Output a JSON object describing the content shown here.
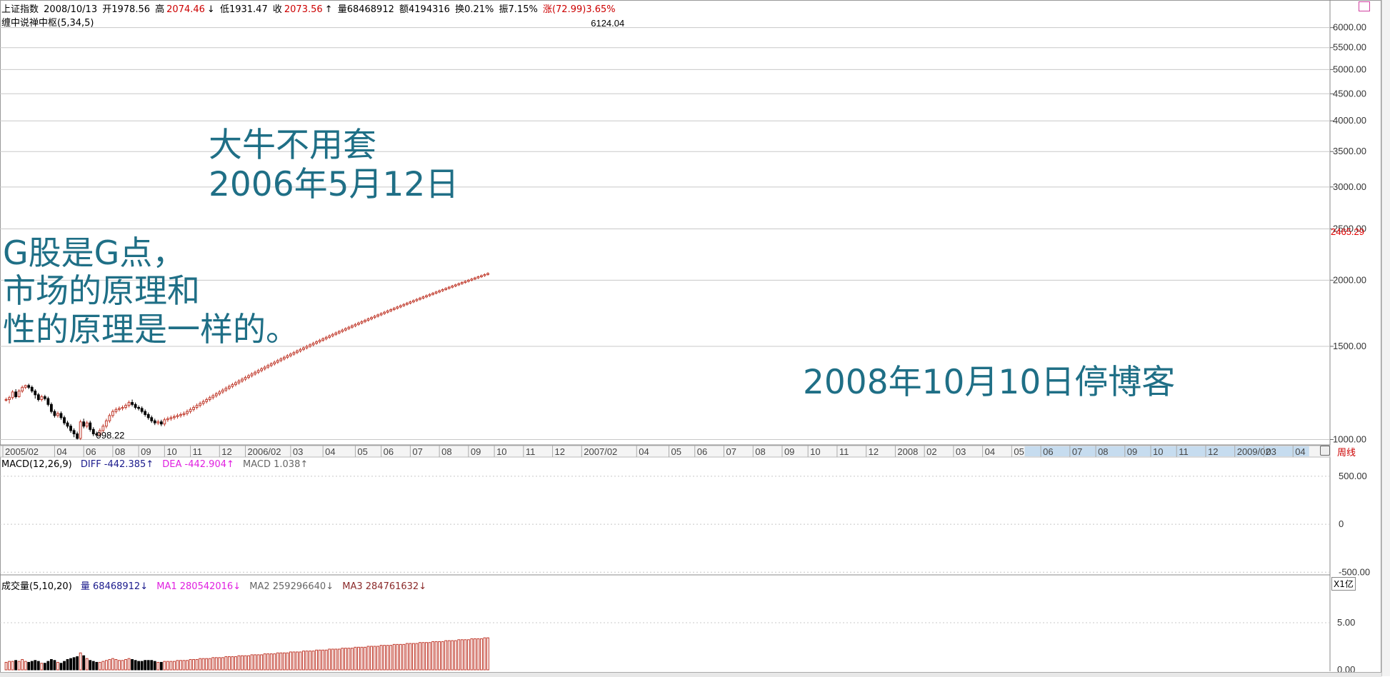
{
  "header": {
    "index_name": "上证指数",
    "date": "2008/10/13",
    "open": "开1978.56",
    "high_label": "高",
    "high": "2074.46",
    "low": "低1931.47",
    "close_label": "收",
    "close": "2073.56",
    "volume": "量68468912",
    "amount": "额4194316",
    "turnover": "换0.21%",
    "amplitude": "振7.15%",
    "change": "涨(72.99)3.65%",
    "indicator_line": "缠中说禅中枢(5,34,5)"
  },
  "annotations": {
    "title_line1": "大牛不用套",
    "title_line2": "2006年5月12日",
    "left_line1": "G股是G点，",
    "left_line2": "市场的原理和",
    "left_line3": "性的原理是一样的。",
    "bottom_right": "2008年10月10日停博客"
  },
  "colors": {
    "up": "#c0392b",
    "down": "#000000",
    "trend_blue": "#0a14c8",
    "zs_magenta": "#e020e0",
    "zs_cyan": "#20d8e8",
    "annot": "#1f6f86",
    "grid": "#c8c8c8",
    "macd_diff": "#1a1a8c",
    "macd_dea": "#e020e0",
    "ma3": "#8b2a2a"
  },
  "chart_data": {
    "type": "candlestick",
    "period": "周线",
    "price_axis": {
      "scale": "log",
      "range": [
        980,
        6600
      ],
      "ticks": [
        1000,
        1500,
        2000,
        2500,
        3000,
        3500,
        4000,
        4500,
        5000,
        5500,
        6000
      ],
      "tick_labels": [
        "1000.00",
        "1500.00",
        "2000.00",
        "2500.00",
        "3000.00",
        "3500.00",
        "4000.00",
        "4500.00",
        "5000.00",
        "5500.00",
        "6000.00"
      ],
      "marker_value": 2465.29,
      "marker_label": "2465.29"
    },
    "extremes": {
      "high_label": "6124.04",
      "high_week": 177,
      "low_label": "998.22",
      "low_week": 24
    },
    "time_axis": {
      "labels": [
        {
          "w": 0,
          "t": "2005/02"
        },
        {
          "w": 16,
          "t": "04"
        },
        {
          "w": 25,
          "t": "06"
        },
        {
          "w": 34,
          "t": "08"
        },
        {
          "w": 42,
          "t": "09"
        },
        {
          "w": 50,
          "t": "10"
        },
        {
          "w": 58,
          "t": "11"
        },
        {
          "w": 67,
          "t": "12"
        },
        {
          "w": 75,
          "t": "2006/02"
        },
        {
          "w": 89,
          "t": "03"
        },
        {
          "w": 99,
          "t": "04"
        },
        {
          "w": 109,
          "t": "05"
        },
        {
          "w": 117,
          "t": "06"
        },
        {
          "w": 126,
          "t": "07"
        },
        {
          "w": 135,
          "t": "08"
        },
        {
          "w": 144,
          "t": "09"
        },
        {
          "w": 152,
          "t": "10"
        },
        {
          "w": 161,
          "t": "11"
        },
        {
          "w": 170,
          "t": "12"
        },
        {
          "w": 179,
          "t": "2007/02"
        },
        {
          "w": 196,
          "t": "04"
        },
        {
          "w": 206,
          "t": "05"
        },
        {
          "w": 214,
          "t": "06"
        },
        {
          "w": 223,
          "t": "07"
        },
        {
          "w": 232,
          "t": "08"
        },
        {
          "w": 241,
          "t": "09"
        },
        {
          "w": 249,
          "t": "10"
        },
        {
          "w": 258,
          "t": "11"
        },
        {
          "w": 267,
          "t": "12"
        },
        {
          "w": 276,
          "t": "2008"
        },
        {
          "w": 285,
          "t": "02"
        },
        {
          "w": 294,
          "t": "03"
        },
        {
          "w": 303,
          "t": "04"
        },
        {
          "w": 312,
          "t": "05"
        },
        {
          "w": 321,
          "t": "06"
        },
        {
          "w": 330,
          "t": "07"
        },
        {
          "w": 338,
          "t": "08"
        },
        {
          "w": 347,
          "t": "09"
        },
        {
          "w": 355,
          "t": "10"
        },
        {
          "w": 363,
          "t": "11"
        },
        {
          "w": 372,
          "t": "12"
        },
        {
          "w": 381,
          "t": "2009/02"
        },
        {
          "w": 390,
          "t": "03"
        },
        {
          "w": 399,
          "t": "04"
        }
      ],
      "future_start_week": 316,
      "future_end_week": 404,
      "period_label": "周线"
    },
    "candles": [
      [
        1,
        1190,
        1190,
        1200,
        1180,
        8
      ],
      [
        2,
        1190,
        1200,
        1210,
        1170,
        9
      ],
      [
        3,
        1200,
        1230,
        1240,
        1190,
        9
      ],
      [
        4,
        1230,
        1205,
        1245,
        1195,
        10
      ],
      [
        5,
        1205,
        1235,
        1245,
        1200,
        9
      ],
      [
        6,
        1235,
        1255,
        1265,
        1225,
        11
      ],
      [
        7,
        1255,
        1265,
        1270,
        1245,
        9
      ],
      [
        8,
        1265,
        1255,
        1275,
        1245,
        8
      ],
      [
        9,
        1255,
        1235,
        1265,
        1225,
        9
      ],
      [
        10,
        1235,
        1215,
        1245,
        1195,
        10
      ],
      [
        11,
        1215,
        1190,
        1225,
        1180,
        9
      ],
      [
        12,
        1190,
        1205,
        1215,
        1180,
        7
      ],
      [
        13,
        1205,
        1195,
        1215,
        1185,
        7
      ],
      [
        14,
        1195,
        1165,
        1205,
        1155,
        9
      ],
      [
        15,
        1165,
        1130,
        1175,
        1120,
        11
      ],
      [
        16,
        1130,
        1110,
        1140,
        1100,
        10
      ],
      [
        17,
        1110,
        1120,
        1130,
        1100,
        8
      ],
      [
        18,
        1120,
        1100,
        1130,
        1090,
        7
      ],
      [
        19,
        1100,
        1075,
        1110,
        1065,
        9
      ],
      [
        20,
        1075,
        1060,
        1085,
        1050,
        11
      ],
      [
        21,
        1060,
        1040,
        1070,
        1030,
        12
      ],
      [
        22,
        1040,
        1025,
        1050,
        1010,
        13
      ],
      [
        23,
        1025,
        1005,
        1035,
        1000,
        14
      ],
      [
        24,
        1005,
        1080,
        1090,
        998,
        18
      ],
      [
        25,
        1080,
        1060,
        1095,
        1050,
        15
      ],
      [
        26,
        1060,
        1075,
        1085,
        1050,
        12
      ],
      [
        27,
        1075,
        1045,
        1085,
        1035,
        10
      ],
      [
        28,
        1045,
        1025,
        1055,
        1015,
        9
      ],
      [
        29,
        1025,
        1020,
        1035,
        1010,
        8
      ],
      [
        30,
        1020,
        1040,
        1050,
        1015,
        8
      ],
      [
        31,
        1040,
        1060,
        1070,
        1030,
        9
      ],
      [
        32,
        1060,
        1085,
        1095,
        1050,
        10
      ],
      [
        33,
        1085,
        1110,
        1120,
        1075,
        11
      ],
      [
        34,
        1110,
        1130,
        1140,
        1100,
        12
      ],
      [
        35,
        1130,
        1140,
        1150,
        1120,
        11
      ],
      [
        36,
        1140,
        1145,
        1155,
        1130,
        10
      ],
      [
        37,
        1145,
        1150,
        1160,
        1135,
        10
      ],
      [
        38,
        1150,
        1160,
        1170,
        1140,
        11
      ],
      [
        39,
        1160,
        1175,
        1185,
        1150,
        12
      ],
      [
        40,
        1175,
        1165,
        1190,
        1155,
        11
      ],
      [
        41,
        1165,
        1150,
        1175,
        1140,
        10
      ],
      [
        42,
        1150,
        1145,
        1160,
        1135,
        9
      ],
      [
        43,
        1145,
        1130,
        1155,
        1120,
        9
      ],
      [
        44,
        1130,
        1115,
        1140,
        1105,
        10
      ],
      [
        45,
        1115,
        1100,
        1125,
        1090,
        10
      ],
      [
        46,
        1100,
        1085,
        1110,
        1075,
        10
      ],
      [
        47,
        1085,
        1075,
        1095,
        1065,
        9
      ],
      [
        48,
        1075,
        1080,
        1090,
        1065,
        8
      ],
      [
        49,
        1080,
        1070,
        1090,
        1060,
        8
      ],
      [
        50,
        1070,
        1090,
        1100,
        1060,
        9
      ],
      [
        51,
        1090,
        1095,
        1105,
        1080,
        9
      ],
      [
        52,
        1095,
        1100,
        1110,
        1085,
        9
      ],
      [
        53,
        1100,
        1105,
        1115,
        1090,
        9
      ],
      [
        54,
        1105,
        1110,
        1120,
        1095,
        10
      ],
      [
        55,
        1110,
        1115,
        1125,
        1100,
        10
      ],
      [
        56,
        1115,
        1120,
        1130,
        1105,
        10
      ],
      [
        57,
        1120,
        1130,
        1140,
        1110,
        10
      ],
      [
        58,
        1130,
        1140,
        1150,
        1120,
        11
      ],
      [
        59,
        1140,
        1150,
        1160,
        1130,
        11
      ],
      [
        60,
        1150,
        1160,
        1170,
        1140,
        11
      ],
      [
        61,
        1160,
        1170,
        1180,
        1150,
        12
      ],
      [
        62,
        1170,
        1180,
        1190,
        1160,
        12
      ],
      [
        63,
        1180,
        1190,
        1200,
        1170,
        12
      ],
      [
        64,
        1190,
        1200,
        1210,
        1180,
        12
      ],
      [
        65,
        1200,
        1210,
        1220,
        1190,
        13
      ],
      [
        66,
        1210,
        1220,
        1230,
        1200,
        13
      ],
      [
        67,
        1220,
        1230,
        1240,
        1210,
        13
      ],
      [
        68,
        1230,
        1240,
        1250,
        1220,
        13
      ],
      [
        69,
        1240,
        1250,
        1260,
        1230,
        14
      ],
      [
        70,
        1250,
        1260,
        1270,
        1240,
        14
      ],
      [
        71,
        1260,
        1270,
        1280,
        1250,
        14
      ],
      [
        72,
        1270,
        1280,
        1290,
        1260,
        14
      ],
      [
        73,
        1280,
        1290,
        1300,
        1270,
        15
      ],
      [
        74,
        1290,
        1300,
        1310,
        1280,
        15
      ],
      [
        75,
        1300,
        1310,
        1320,
        1290,
        15
      ],
      [
        76,
        1310,
        1320,
        1330,
        1300,
        15
      ],
      [
        77,
        1320,
        1330,
        1340,
        1310,
        16
      ],
      [
        78,
        1330,
        1340,
        1350,
        1320,
        16
      ],
      [
        79,
        1340,
        1350,
        1360,
        1330,
        16
      ],
      [
        80,
        1350,
        1360,
        1370,
        1340,
        16
      ],
      [
        81,
        1360,
        1370,
        1380,
        1350,
        17
      ],
      [
        82,
        1370,
        1380,
        1390,
        1360,
        17
      ],
      [
        83,
        1380,
        1390,
        1400,
        1370,
        17
      ],
      [
        84,
        1390,
        1400,
        1410,
        1380,
        17
      ],
      [
        85,
        1400,
        1410,
        1420,
        1390,
        18
      ],
      [
        86,
        1410,
        1420,
        1430,
        1400,
        18
      ],
      [
        87,
        1420,
        1430,
        1440,
        1410,
        18
      ],
      [
        88,
        1430,
        1440,
        1450,
        1420,
        18
      ],
      [
        89,
        1440,
        1450,
        1460,
        1430,
        19
      ],
      [
        90,
        1450,
        1460,
        1470,
        1440,
        19
      ],
      [
        91,
        1460,
        1470,
        1480,
        1450,
        19
      ],
      [
        92,
        1470,
        1480,
        1490,
        1460,
        19
      ],
      [
        93,
        1480,
        1490,
        1500,
        1470,
        20
      ],
      [
        94,
        1490,
        1500,
        1510,
        1480,
        20
      ],
      [
        95,
        1500,
        1510,
        1520,
        1490,
        20
      ],
      [
        96,
        1510,
        1520,
        1530,
        1500,
        20
      ],
      [
        97,
        1520,
        1530,
        1540,
        1510,
        21
      ],
      [
        98,
        1530,
        1540,
        1550,
        1520,
        21
      ],
      [
        99,
        1540,
        1550,
        1560,
        1530,
        21
      ],
      [
        100,
        1550,
        1560,
        1570,
        1540,
        21
      ],
      [
        101,
        1560,
        1570,
        1580,
        1550,
        22
      ],
      [
        102,
        1570,
        1580,
        1590,
        1560,
        22
      ],
      [
        103,
        1580,
        1590,
        1600,
        1570,
        22
      ],
      [
        104,
        1590,
        1600,
        1610,
        1580,
        22
      ],
      [
        105,
        1600,
        1610,
        1620,
        1590,
        23
      ],
      [
        106,
        1610,
        1620,
        1630,
        1600,
        23
      ],
      [
        107,
        1620,
        1630,
        1640,
        1610,
        23
      ],
      [
        108,
        1630,
        1640,
        1650,
        1620,
        23
      ],
      [
        109,
        1640,
        1650,
        1660,
        1630,
        24
      ],
      [
        110,
        1650,
        1660,
        1670,
        1640,
        24
      ],
      [
        111,
        1660,
        1670,
        1680,
        1650,
        24
      ],
      [
        112,
        1670,
        1680,
        1690,
        1660,
        24
      ],
      [
        113,
        1680,
        1690,
        1700,
        1670,
        25
      ],
      [
        114,
        1690,
        1700,
        1710,
        1680,
        25
      ],
      [
        115,
        1700,
        1710,
        1720,
        1690,
        25
      ],
      [
        116,
        1710,
        1720,
        1730,
        1700,
        25
      ],
      [
        117,
        1720,
        1730,
        1740,
        1710,
        26
      ],
      [
        118,
        1730,
        1740,
        1750,
        1720,
        26
      ],
      [
        119,
        1740,
        1750,
        1760,
        1730,
        26
      ],
      [
        120,
        1750,
        1760,
        1770,
        1740,
        26
      ],
      [
        121,
        1760,
        1770,
        1780,
        1750,
        27
      ],
      [
        122,
        1770,
        1780,
        1790,
        1760,
        27
      ],
      [
        123,
        1780,
        1790,
        1800,
        1770,
        27
      ],
      [
        124,
        1790,
        1800,
        1810,
        1780,
        27
      ],
      [
        125,
        1800,
        1810,
        1820,
        1790,
        28
      ],
      [
        126,
        1810,
        1820,
        1830,
        1800,
        28
      ],
      [
        127,
        1820,
        1830,
        1840,
        1810,
        28
      ],
      [
        128,
        1830,
        1840,
        1850,
        1820,
        28
      ],
      [
        129,
        1840,
        1850,
        1860,
        1830,
        29
      ],
      [
        130,
        1850,
        1860,
        1870,
        1840,
        29
      ],
      [
        131,
        1860,
        1870,
        1880,
        1850,
        29
      ],
      [
        132,
        1870,
        1880,
        1890,
        1860,
        29
      ],
      [
        133,
        1880,
        1890,
        1900,
        1870,
        30
      ],
      [
        134,
        1890,
        1900,
        1910,
        1880,
        30
      ],
      [
        135,
        1900,
        1910,
        1920,
        1890,
        30
      ],
      [
        136,
        1910,
        1920,
        1930,
        1900,
        30
      ],
      [
        137,
        1920,
        1930,
        1940,
        1910,
        31
      ],
      [
        138,
        1930,
        1940,
        1950,
        1920,
        31
      ],
      [
        139,
        1940,
        1950,
        1960,
        1930,
        31
      ],
      [
        140,
        1950,
        1960,
        1970,
        1940,
        31
      ],
      [
        141,
        1960,
        1970,
        1980,
        1950,
        32
      ],
      [
        142,
        1970,
        1980,
        1990,
        1960,
        32
      ],
      [
        143,
        1980,
        1990,
        2000,
        1970,
        32
      ],
      [
        144,
        1990,
        2000,
        2010,
        1980,
        32
      ],
      [
        145,
        2000,
        2010,
        2020,
        1990,
        33
      ],
      [
        146,
        2010,
        2020,
        2030,
        2000,
        33
      ],
      [
        147,
        2020,
        2030,
        2040,
        2010,
        33
      ],
      [
        148,
        2030,
        2040,
        2050,
        2020,
        33
      ],
      [
        149,
        2040,
        2050,
        2060,
        2030,
        34
      ],
      [
        150,
        2050,
        2060,
        2070,
        2040,
        34
      ]
    ],
    "macd": {
      "label": "MACD(12,26,9)",
      "diff_label": "DIFF -442.385↑",
      "dea_label": "DEA -442.904↑",
      "macd_label": "MACD 1.038↑",
      "ticks": [
        500,
        0,
        -500
      ],
      "tick_labels": [
        "500.00",
        "0",
        "-500.00"
      ],
      "range": [
        -520,
        700
      ],
      "diff": [],
      "dea": []
    },
    "volume": {
      "label": "成交量(5,10,20)",
      "vol_label": "量 68468912↓",
      "ma1_label": "MA1 280542016↓",
      "ma2_label": "MA2 259296640↓",
      "ma3_label": "MA3 284761632↓",
      "unit_label": "X1亿",
      "ticks": [
        0,
        5
      ],
      "tick_labels": [
        "0.00",
        "5.00"
      ],
      "range": [
        0,
        10
      ]
    }
  }
}
